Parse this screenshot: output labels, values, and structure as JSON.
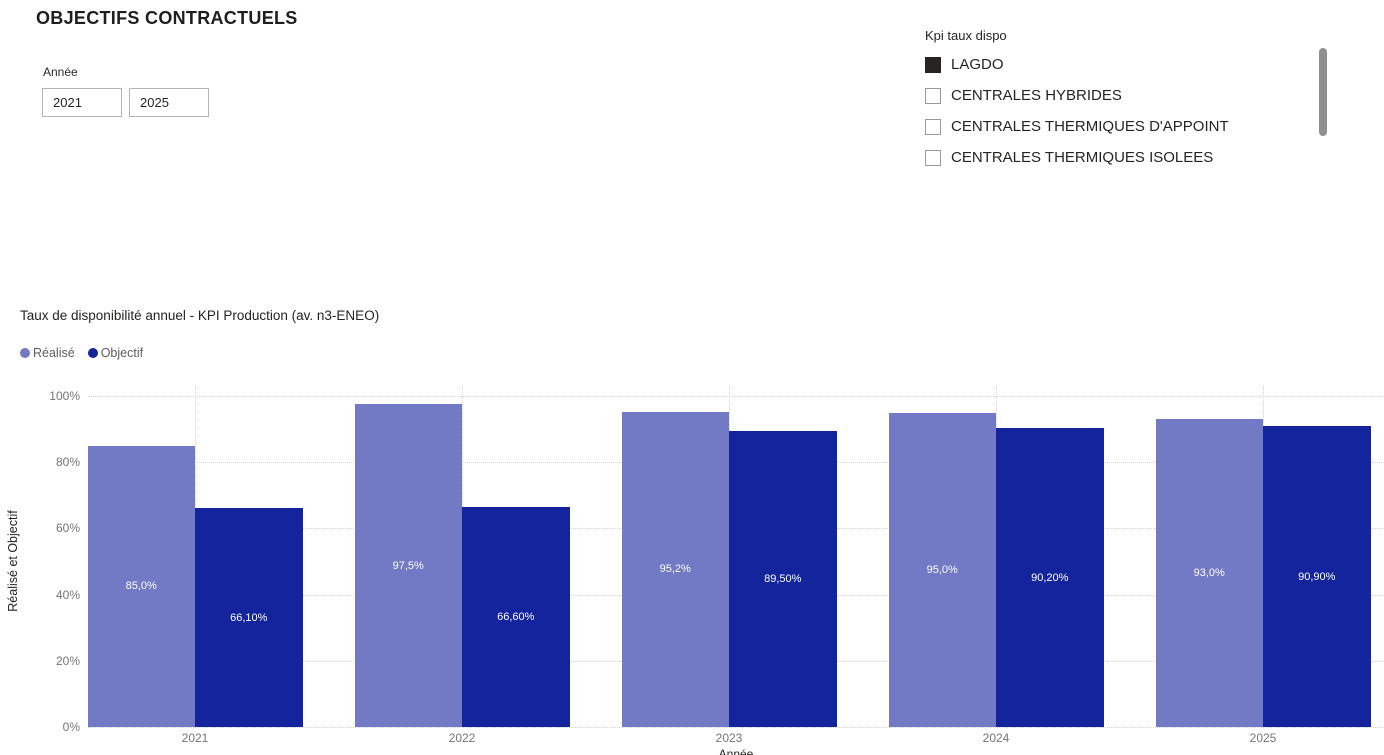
{
  "page": {
    "title": "OBJECTIFS CONTRACTUELS"
  },
  "slicer": {
    "label": "Année",
    "start_value": "2021",
    "end_value": "2025"
  },
  "kpi_filter": {
    "title": "Kpi taux dispo",
    "checked_icon": "checkbox-checked-icon",
    "unchecked_icon": "checkbox-unchecked-icon",
    "items": [
      {
        "label": "LAGDO",
        "checked": true
      },
      {
        "label": "CENTRALES HYBRIDES",
        "checked": false
      },
      {
        "label": "CENTRALES THERMIQUES D'APPOINT",
        "checked": false
      },
      {
        "label": "CENTRALES THERMIQUES ISOLEES",
        "checked": false
      }
    ]
  },
  "colors": {
    "realise": "#7279C5",
    "objectif": "#13249D",
    "text_dark": "#252423",
    "axis_text": "#757575",
    "gridline": "#d4d4d4",
    "checked_box": "#252423",
    "scrollbar": "#8f8f8f"
  },
  "chart_data": {
    "type": "bar",
    "title": "Taux de disponibilité annuel - KPI Production (av. n3-ENEO)",
    "categories": [
      "2021",
      "2022",
      "2023",
      "2024",
      "2025"
    ],
    "series": [
      {
        "name": "Réalisé",
        "color": "#7279C5",
        "values": [
          85.0,
          97.5,
          95.2,
          95.0,
          93.0
        ],
        "labels": [
          "85,0%",
          "97,5%",
          "95,2%",
          "95,0%",
          "93,0%"
        ]
      },
      {
        "name": "Objectif",
        "color": "#13249D",
        "values": [
          66.1,
          66.6,
          89.5,
          90.2,
          90.9
        ],
        "labels": [
          "66,10%",
          "66,60%",
          "89,50%",
          "90,20%",
          "90,90%"
        ]
      }
    ],
    "xlabel": "Année",
    "ylabel": "Réalisé et Objectif",
    "ylim": [
      0,
      100
    ],
    "yticks": [
      "0%",
      "20%",
      "40%",
      "60%",
      "80%",
      "100%"
    ],
    "grid": true,
    "legend_position": "top-left"
  }
}
